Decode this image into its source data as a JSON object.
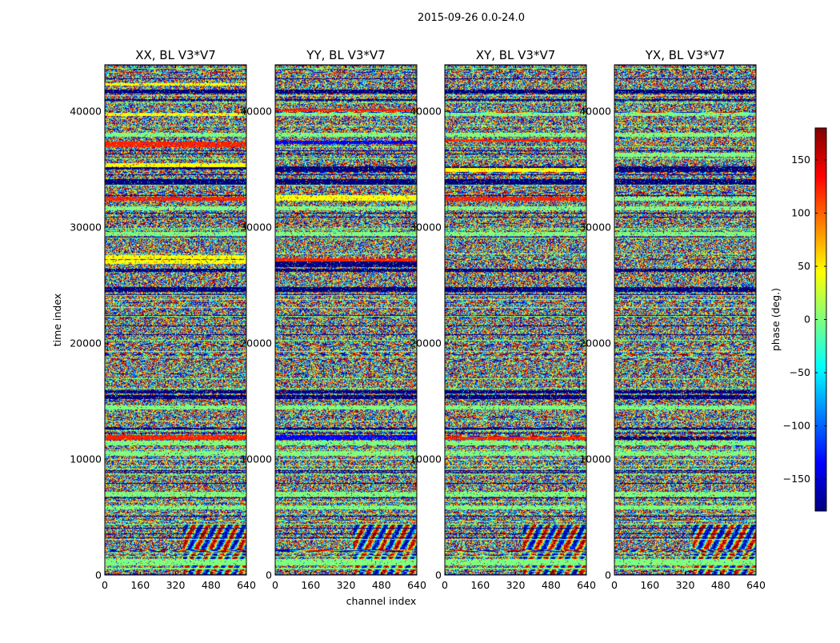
{
  "figure_title": "2015-09-26 0.0-24.0",
  "chart_data": [
    {
      "type": "heatmap",
      "title": "XX, BL V3*V7",
      "xlabel": "",
      "ylabel": "time index",
      "xlim": [
        0,
        640
      ],
      "ylim": [
        0,
        44000
      ],
      "xticks": [
        0,
        160,
        320,
        480,
        640
      ],
      "yticks": [
        0,
        10000,
        20000,
        30000,
        40000
      ],
      "value_range": [
        -180,
        180
      ],
      "pattern_note": "noisy phase with horizontal banding",
      "colormap": "jet"
    },
    {
      "type": "heatmap",
      "title": "YY, BL V3*V7",
      "xlabel": "channel index",
      "ylabel": "",
      "xlim": [
        0,
        640
      ],
      "ylim": [
        0,
        44000
      ],
      "xticks": [
        0,
        160,
        320,
        480,
        640
      ],
      "yticks": [
        0,
        10000,
        20000,
        30000,
        40000
      ],
      "value_range": [
        -180,
        180
      ],
      "colormap": "jet"
    },
    {
      "type": "heatmap",
      "title": "XY, BL V3*V7",
      "xlabel": "",
      "ylabel": "",
      "xlim": [
        0,
        640
      ],
      "ylim": [
        0,
        44000
      ],
      "xticks": [
        0,
        160,
        320,
        480,
        640
      ],
      "yticks": [
        0,
        10000,
        20000,
        30000,
        40000
      ],
      "value_range": [
        -180,
        180
      ],
      "colormap": "jet"
    },
    {
      "type": "heatmap",
      "title": "YX, BL V3*V7",
      "xlabel": "",
      "ylabel": "",
      "xlim": [
        0,
        640
      ],
      "ylim": [
        0,
        44000
      ],
      "xticks": [
        0,
        160,
        320,
        480,
        640
      ],
      "yticks": [
        0,
        10000,
        20000,
        30000,
        40000
      ],
      "value_range": [
        -180,
        180
      ],
      "colormap": "jet"
    }
  ],
  "colorbar": {
    "label": "phase (deg.)",
    "min": -180,
    "max": 180,
    "ticks": [
      -150,
      -100,
      -50,
      0,
      50,
      100,
      150
    ],
    "colors": [
      "#00007f",
      "#0000ff",
      "#007fff",
      "#00ffff",
      "#7fff7f",
      "#ffff00",
      "#ff7f00",
      "#ff0000",
      "#7f0000"
    ]
  },
  "colors": {
    "background": "#ffffff",
    "band_green": "#7fff7f",
    "band_navy": "#00007f",
    "band_yellow": "#ffff00",
    "band_red": "#ff2000",
    "band_blue": "#0000ff"
  }
}
